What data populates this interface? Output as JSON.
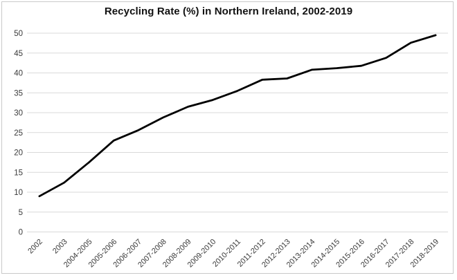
{
  "chart_data": {
    "type": "line",
    "title": "Recycling Rate (%) in Northern Ireland, 2002-2019",
    "xlabel": "",
    "ylabel": "",
    "categories": [
      "2002",
      "2003",
      "2004-2005",
      "2005-2006",
      "2006-2007",
      "2007-2008",
      "2008-2009",
      "2009-2010",
      "2010-2011",
      "2011-2012",
      "2012-2013",
      "2013-2014",
      "2014-2015",
      "2015-2016",
      "2016-2017",
      "2017-2018",
      "2018-2019"
    ],
    "series": [
      {
        "name": "Recycling rate (%)",
        "values": [
          9.0,
          12.4,
          17.5,
          23.0,
          25.6,
          28.8,
          31.5,
          33.2,
          35.5,
          38.3,
          38.6,
          40.8,
          41.2,
          41.8,
          43.8,
          47.6,
          49.5
        ]
      }
    ],
    "ylim": [
      0,
      50
    ],
    "yticks": [
      0,
      5,
      10,
      15,
      20,
      25,
      30,
      35,
      40,
      45,
      50
    ],
    "grid": "horizontal-only",
    "legend": "none",
    "markers": "none",
    "x_label_rotation_deg": -45,
    "colors": {
      "line": "#000000",
      "gridline": "#d9d9d9",
      "tick_label": "#3a3a3a",
      "title": "#111111",
      "background": "#ffffff",
      "frame_border": "#c9c9c9"
    }
  }
}
